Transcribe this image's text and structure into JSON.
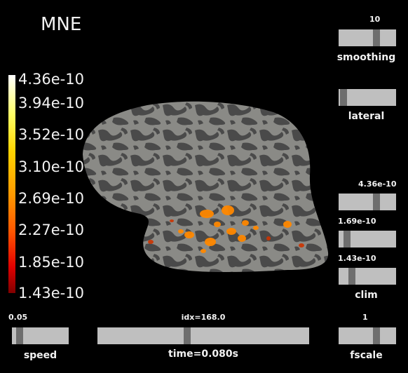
{
  "title": "MNE",
  "colorbar": {
    "ticks": [
      "4.36e-10",
      "3.94e-10",
      "3.52e-10",
      "3.10e-10",
      "2.69e-10",
      "2.27e-10",
      "1.85e-10",
      "1.43e-10"
    ]
  },
  "sliders": {
    "smoothing": {
      "label": "smoothing",
      "value": "10",
      "level": 0.68
    },
    "lateral": {
      "label": "lateral",
      "level": 0.03
    },
    "clim_high": {
      "value": "4.36e-10",
      "level": 0.68
    },
    "clim_mid": {
      "value": "1.69e-10",
      "level": 0.1
    },
    "clim_low": {
      "value": "1.43e-10",
      "level": 0.2
    },
    "clim_label": "clim",
    "speed": {
      "label": "speed",
      "value": "0.05",
      "level": 0.08
    },
    "time": {
      "label": "time=0.080s",
      "value": "idx=168.0",
      "level": 0.42
    },
    "fscale": {
      "label": "fscale",
      "value": "1",
      "level": 0.68
    }
  },
  "colors": {
    "cortex_light": "#8a8a86",
    "cortex_dark": "#4a4a4a",
    "activation": "#ff8800"
  }
}
